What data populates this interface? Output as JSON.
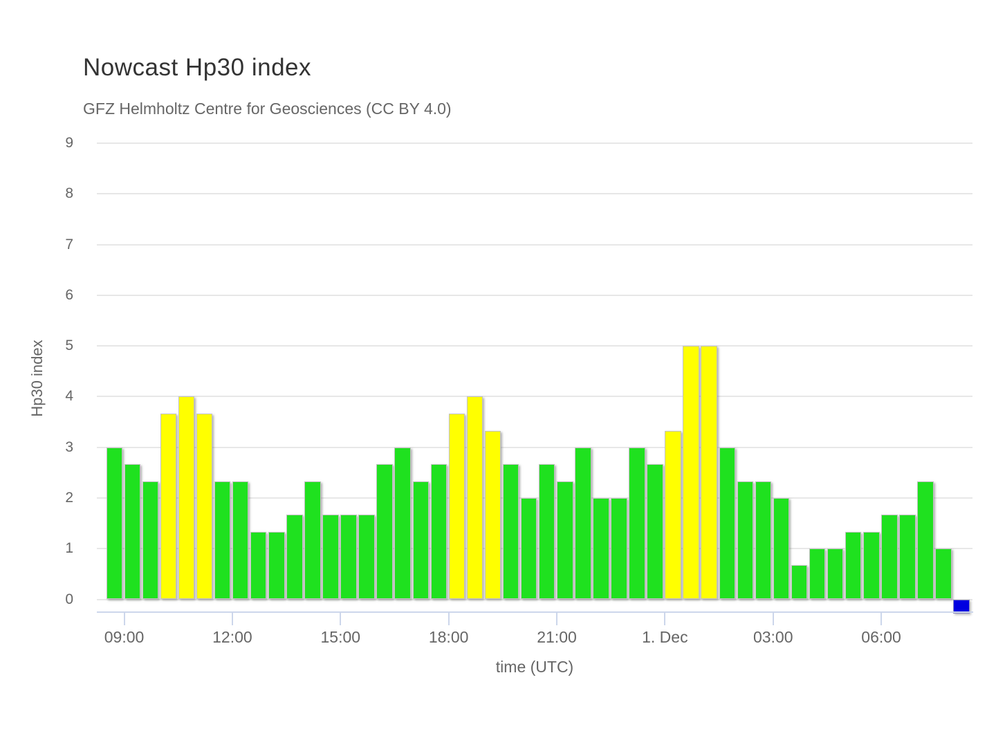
{
  "header": {
    "title": "Nowcast Hp30 index",
    "subtitle": "GFZ Helmholtz Centre for Geosciences (CC BY 4.0)"
  },
  "colors": {
    "green": "#1fe11f",
    "yellow": "#ffff00",
    "blue": "#0000e0",
    "grid": "#e7e7e7",
    "axis": "#ccd6eb",
    "title_text": "#333333",
    "label_text": "#666666"
  },
  "chart_data": {
    "type": "bar",
    "title": "Nowcast Hp30 index",
    "subtitle": "GFZ Helmholtz Centre for Geosciences (CC BY 4.0)",
    "xlabel": "time (UTC)",
    "ylabel": "Hp30 index",
    "ylim": [
      0,
      9
    ],
    "grid": "horizontal",
    "legend": "none",
    "y_ticks": [
      "0",
      "1",
      "2",
      "3",
      "4",
      "5",
      "6",
      "7",
      "8",
      "9"
    ],
    "x_tick_labels": [
      "09:00",
      "12:00",
      "15:00",
      "18:00",
      "21:00",
      "1. Dec",
      "03:00",
      "06:00"
    ],
    "bar_interval_minutes": 30,
    "x": [
      "08:30",
      "09:00",
      "09:30",
      "10:00",
      "10:30",
      "11:00",
      "11:30",
      "12:00",
      "12:30",
      "13:00",
      "13:30",
      "14:00",
      "14:30",
      "15:00",
      "15:30",
      "16:00",
      "16:30",
      "17:00",
      "17:30",
      "18:00",
      "18:30",
      "19:00",
      "19:30",
      "20:00",
      "20:30",
      "21:00",
      "21:30",
      "22:00",
      "22:30",
      "23:00",
      "23:30",
      "00:00",
      "00:30",
      "01:00",
      "01:30",
      "02:00",
      "02:30",
      "03:00",
      "03:30",
      "04:00",
      "04:30",
      "05:00",
      "05:30",
      "06:00",
      "06:30",
      "07:00",
      "07:30"
    ],
    "values": [
      3,
      2.67,
      2.33,
      3.67,
      4,
      3.67,
      2.33,
      2.33,
      1.33,
      1.33,
      1.67,
      2.33,
      1.67,
      1.67,
      1.67,
      2.67,
      3,
      2.33,
      2.67,
      3.67,
      4,
      3.33,
      2.67,
      2,
      2.67,
      2.33,
      3,
      2,
      2,
      3,
      2.67,
      3.33,
      5,
      5,
      3,
      2.33,
      2.33,
      2,
      0.67,
      1,
      1,
      1.33,
      1.33,
      1.67,
      1.67,
      2.33,
      1
    ],
    "bar_colors": [
      "green",
      "green",
      "green",
      "yellow",
      "yellow",
      "yellow",
      "green",
      "green",
      "green",
      "green",
      "green",
      "green",
      "green",
      "green",
      "green",
      "green",
      "green",
      "green",
      "green",
      "yellow",
      "yellow",
      "yellow",
      "green",
      "green",
      "green",
      "green",
      "green",
      "green",
      "green",
      "green",
      "green",
      "yellow",
      "yellow",
      "yellow",
      "green",
      "green",
      "green",
      "green",
      "green",
      "green",
      "green",
      "green",
      "green",
      "green",
      "green",
      "green",
      "green"
    ],
    "current_marker": {
      "x": "08:00",
      "color": "blue"
    }
  }
}
